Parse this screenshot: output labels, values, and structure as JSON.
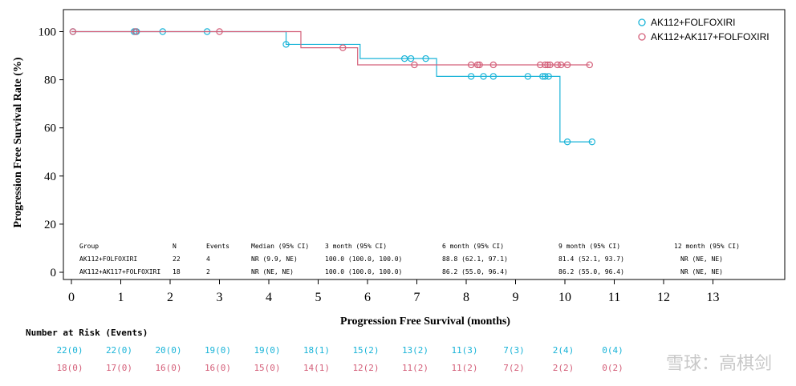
{
  "chart_data": {
    "type": "line",
    "subtype": "kaplan-meier-step",
    "ylabel": "Progression Free Survival Rate (%)",
    "xlabel": "Progression Free Survival (months)",
    "xlim": [
      0,
      14.5
    ],
    "ylim": [
      -3,
      112
    ],
    "xticks": [
      0,
      1,
      2,
      3,
      4,
      5,
      6,
      7,
      8,
      9,
      10,
      11,
      12,
      13
    ],
    "yticks": [
      0,
      20,
      40,
      60,
      80,
      100
    ],
    "grid": false,
    "legend_position": "top-right",
    "series": [
      {
        "name": "AK112+FOLFOXIRI",
        "color": "#1ab4d8",
        "steps": [
          [
            0,
            100
          ],
          [
            4.35,
            94.7
          ],
          [
            5.85,
            88.8
          ],
          [
            7.4,
            81.4
          ],
          [
            9.9,
            54.2
          ],
          [
            10.55,
            54.2
          ]
        ],
        "censored": [
          [
            0.03,
            100
          ],
          [
            1.27,
            100
          ],
          [
            1.32,
            100
          ],
          [
            1.85,
            100
          ],
          [
            2.75,
            100
          ],
          [
            4.35,
            94.7
          ],
          [
            6.75,
            88.8
          ],
          [
            6.88,
            88.8
          ],
          [
            7.18,
            88.8
          ],
          [
            8.1,
            81.4
          ],
          [
            8.35,
            81.4
          ],
          [
            8.55,
            81.4
          ],
          [
            9.25,
            81.4
          ],
          [
            9.55,
            81.4
          ],
          [
            9.6,
            81.4
          ],
          [
            9.67,
            81.4
          ],
          [
            10.05,
            54.2
          ],
          [
            10.55,
            54.2
          ]
        ]
      },
      {
        "name": "AK112+AK117+FOLFOXIRI",
        "color": "#d4607a",
        "steps": [
          [
            0,
            100
          ],
          [
            4.65,
            93.3
          ],
          [
            5.8,
            86.2
          ],
          [
            10.5,
            86.2
          ]
        ],
        "censored": [
          [
            0.03,
            100
          ],
          [
            1.3,
            100
          ],
          [
            3.0,
            100
          ],
          [
            5.5,
            93.3
          ],
          [
            6.95,
            86.2
          ],
          [
            8.1,
            86.2
          ],
          [
            8.23,
            86.2
          ],
          [
            8.27,
            86.2
          ],
          [
            8.55,
            86.2
          ],
          [
            9.5,
            86.2
          ],
          [
            9.6,
            86.2
          ],
          [
            9.65,
            86.2
          ],
          [
            9.7,
            86.2
          ],
          [
            9.85,
            86.2
          ],
          [
            9.92,
            86.2
          ],
          [
            10.05,
            86.2
          ],
          [
            10.5,
            86.2
          ]
        ]
      }
    ],
    "summary_table": {
      "headers": [
        "Group",
        "N",
        "Events",
        "Median (95% CI)",
        "3 month (95% CI)",
        "6 month (95% CI)",
        "9 month (95% CI)",
        "12 month (95% CI)"
      ],
      "rows": [
        [
          "AK112+FOLFOXIRI",
          "22",
          "4",
          "NR (9.9, NE)",
          "100.0 (100.0, 100.0)",
          "88.8 (62.1, 97.1)",
          "81.4 (52.1, 93.7)",
          "NR (NE, NE)"
        ],
        [
          "AK112+AK117+FOLFOXIRI",
          "18",
          "2",
          "NR (NE, NE)",
          "100.0 (100.0, 100.0)",
          "86.2 (55.0, 96.4)",
          "86.2 (55.0, 96.4)",
          "NR (NE, NE)"
        ]
      ]
    },
    "risk_table": {
      "title": "Number at Risk (Events)",
      "times": [
        0,
        1,
        2,
        3,
        4,
        5,
        6,
        7,
        8,
        9,
        10,
        11
      ],
      "rows": [
        {
          "color": "#1ab4d8",
          "values": [
            "22(0)",
            "22(0)",
            "20(0)",
            "19(0)",
            "19(0)",
            "18(1)",
            "15(2)",
            "13(2)",
            "11(3)",
            "7(3)",
            "2(4)",
            "0(4)"
          ]
        },
        {
          "color": "#d4607a",
          "values": [
            "18(0)",
            "17(0)",
            "16(0)",
            "16(0)",
            "15(0)",
            "14(1)",
            "12(2)",
            "11(2)",
            "11(2)",
            "7(2)",
            "2(2)",
            "0(2)"
          ]
        }
      ]
    }
  },
  "watermark": "雪球：高棋剑"
}
